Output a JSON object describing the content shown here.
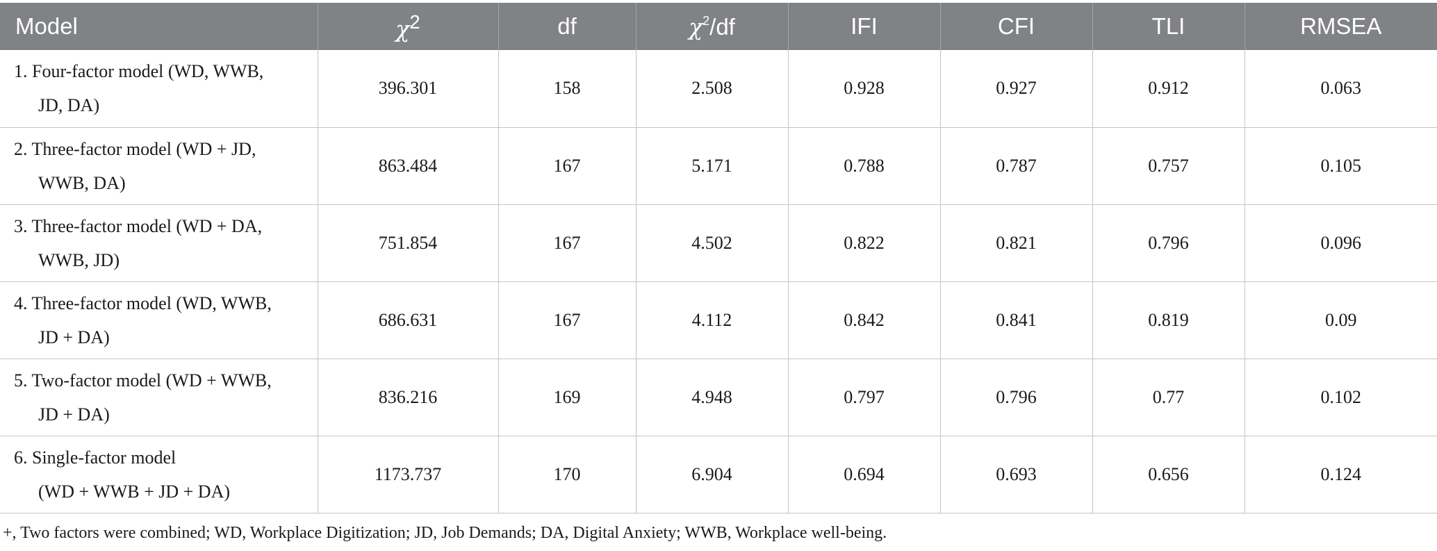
{
  "header": {
    "model": "Model",
    "chi2": "χ",
    "chi2_sup": "2",
    "df": "df",
    "chi2df_sym": "χ",
    "chi2df_sup": "2",
    "chi2df_tail": "/df",
    "ifi": "IFI",
    "cfi": "CFI",
    "tli": "TLI",
    "rmsea": "RMSEA"
  },
  "rows": [
    {
      "model_l1": "1. Four-factor model (WD, WWB,",
      "model_l2": "JD, DA)",
      "chi2": "396.301",
      "df": "158",
      "chi2df": "2.508",
      "ifi": "0.928",
      "cfi": "0.927",
      "tli": "0.912",
      "rmsea": "0.063"
    },
    {
      "model_l1": "2. Three-factor model (WD + JD,",
      "model_l2": "WWB, DA)",
      "chi2": "863.484",
      "df": "167",
      "chi2df": "5.171",
      "ifi": "0.788",
      "cfi": "0.787",
      "tli": "0.757",
      "rmsea": "0.105"
    },
    {
      "model_l1": "3. Three-factor model (WD + DA,",
      "model_l2": "WWB, JD)",
      "chi2": "751.854",
      "df": "167",
      "chi2df": "4.502",
      "ifi": "0.822",
      "cfi": "0.821",
      "tli": "0.796",
      "rmsea": "0.096"
    },
    {
      "model_l1": "4. Three-factor model (WD, WWB,",
      "model_l2": "JD + DA)",
      "chi2": "686.631",
      "df": "167",
      "chi2df": "4.112",
      "ifi": "0.842",
      "cfi": "0.841",
      "tli": "0.819",
      "rmsea": "0.09"
    },
    {
      "model_l1": "5. Two-factor model (WD + WWB,",
      "model_l2": "JD + DA)",
      "chi2": "836.216",
      "df": "169",
      "chi2df": "4.948",
      "ifi": "0.797",
      "cfi": "0.796",
      "tli": "0.77",
      "rmsea": "0.102"
    },
    {
      "model_l1": "6. Single-factor model",
      "model_l2": "(WD + WWB + JD + DA)",
      "chi2": "1173.737",
      "df": "170",
      "chi2df": "6.904",
      "ifi": "0.694",
      "cfi": "0.693",
      "tli": "0.656",
      "rmsea": "0.124"
    }
  ],
  "footnote": "+, Two factors were combined; WD, Workplace Digitization; JD, Job Demands; DA, Digital Anxiety; WWB, Workplace well-being.",
  "colors": {
    "header_bg": "#808285",
    "header_text": "#ffffff",
    "grid": "#c4c4c4"
  }
}
